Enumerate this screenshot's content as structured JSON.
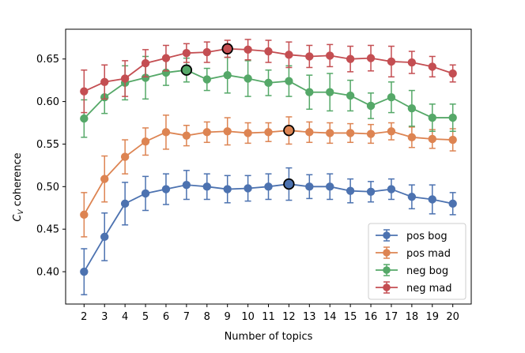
{
  "chart_data": {
    "type": "line",
    "title": "",
    "xlabel": "Number of topics",
    "ylabel_main": "C",
    "ylabel_sub": "V",
    "ylabel_rest": " coherence",
    "x": [
      2,
      3,
      4,
      5,
      6,
      7,
      8,
      9,
      10,
      11,
      12,
      13,
      14,
      15,
      16,
      17,
      18,
      19,
      20
    ],
    "xlim": [
      1.1,
      20.9
    ],
    "ylim": [
      0.362,
      0.685
    ],
    "yticks": [
      0.4,
      0.45,
      0.5,
      0.55,
      0.6,
      0.65
    ],
    "ytick_labels": [
      "0.40",
      "0.45",
      "0.50",
      "0.55",
      "0.60",
      "0.65"
    ],
    "legend_position": "lower-right",
    "series": [
      {
        "name": "pos bog",
        "color": "#4c72b0",
        "values": [
          0.4,
          0.441,
          0.48,
          0.492,
          0.497,
          0.502,
          0.5,
          0.497,
          0.498,
          0.5,
          0.503,
          0.5,
          0.5,
          0.495,
          0.494,
          0.497,
          0.488,
          0.485,
          0.48
        ],
        "errors": [
          0.027,
          0.028,
          0.025,
          0.02,
          0.018,
          0.017,
          0.015,
          0.016,
          0.015,
          0.015,
          0.019,
          0.014,
          0.015,
          0.014,
          0.012,
          0.012,
          0.014,
          0.017,
          0.013
        ],
        "best_index": 10
      },
      {
        "name": "pos mad",
        "color": "#dd8452",
        "values": [
          0.467,
          0.509,
          0.535,
          0.553,
          0.564,
          0.56,
          0.564,
          0.565,
          0.563,
          0.564,
          0.566,
          0.564,
          0.563,
          0.563,
          0.562,
          0.565,
          0.558,
          0.556,
          0.555
        ],
        "errors": [
          0.026,
          0.027,
          0.02,
          0.016,
          0.02,
          0.012,
          0.012,
          0.016,
          0.012,
          0.011,
          0.016,
          0.012,
          0.012,
          0.011,
          0.011,
          0.01,
          0.012,
          0.011,
          0.013
        ],
        "best_index": 10
      },
      {
        "name": "neg bog",
        "color": "#55a868",
        "values": [
          0.58,
          0.605,
          0.622,
          0.628,
          0.634,
          0.637,
          0.626,
          0.631,
          0.627,
          0.622,
          0.624,
          0.611,
          0.611,
          0.607,
          0.595,
          0.605,
          0.592,
          0.581,
          0.581
        ],
        "errors": [
          0.022,
          0.019,
          0.02,
          0.025,
          0.015,
          0.014,
          0.013,
          0.021,
          0.021,
          0.015,
          0.018,
          0.02,
          0.022,
          0.018,
          0.015,
          0.018,
          0.021,
          0.016,
          0.016
        ],
        "best_index": 5
      },
      {
        "name": "neg mad",
        "color": "#c44e52",
        "values": [
          0.612,
          0.623,
          0.627,
          0.645,
          0.651,
          0.657,
          0.658,
          0.662,
          0.661,
          0.659,
          0.655,
          0.653,
          0.654,
          0.65,
          0.651,
          0.647,
          0.646,
          0.641,
          0.633
        ],
        "errors": [
          0.025,
          0.02,
          0.021,
          0.016,
          0.015,
          0.011,
          0.012,
          0.01,
          0.012,
          0.013,
          0.015,
          0.013,
          0.013,
          0.015,
          0.015,
          0.018,
          0.013,
          0.012,
          0.01
        ],
        "best_index": 7
      }
    ]
  }
}
